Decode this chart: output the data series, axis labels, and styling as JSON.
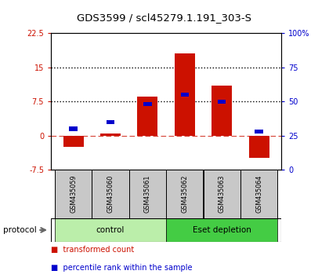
{
  "title": "GDS3599 / scl45279.1.191_303-S",
  "samples": [
    "GSM435059",
    "GSM435060",
    "GSM435061",
    "GSM435062",
    "GSM435063",
    "GSM435064"
  ],
  "red_values": [
    -2.5,
    0.5,
    8.5,
    18.0,
    11.0,
    -5.0
  ],
  "blue_values_pct": [
    30,
    35,
    48,
    55,
    50,
    28
  ],
  "ylim_left": [
    -7.5,
    22.5
  ],
  "ylim_right": [
    0,
    100
  ],
  "yticks_left": [
    -7.5,
    0,
    7.5,
    15,
    22.5
  ],
  "ytick_labels_left": [
    "-7.5",
    "0",
    "7.5",
    "15",
    "22.5"
  ],
  "yticks_right": [
    0,
    25,
    50,
    75,
    100
  ],
  "ytick_labels_right": [
    "0",
    "25",
    "50",
    "75",
    "100%"
  ],
  "hlines": [
    7.5,
    15.0
  ],
  "zero_line": 0.0,
  "groups": [
    {
      "label": "control",
      "indices": [
        0,
        1,
        2
      ],
      "color": "#bbeeaa"
    },
    {
      "label": "Eset depletion",
      "indices": [
        3,
        4,
        5
      ],
      "color": "#44cc44"
    }
  ],
  "protocol_label": "protocol",
  "legend_red_label": "transformed count",
  "legend_blue_label": "percentile rank within the sample",
  "red_color": "#cc1100",
  "blue_color": "#0000cc",
  "bar_width": 0.55,
  "title_fontsize": 9.5,
  "tick_fontsize": 7,
  "label_fontsize": 8,
  "background_color": "#ffffff",
  "plot_bg_color": "#ffffff",
  "sample_area_color": "#c8c8c8"
}
